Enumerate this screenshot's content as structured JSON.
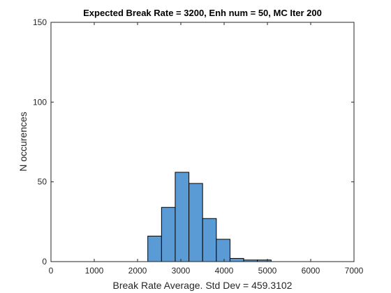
{
  "chart_data": {
    "type": "bar",
    "title": "Expected Break Rate = 3200, Enh num = 50, MC Iter 200",
    "xlabel": "Break Rate Average. Std Dev = 459.3102",
    "ylabel": "N occurences",
    "xlim": [
      0,
      7000
    ],
    "ylim": [
      0,
      150
    ],
    "xticks": [
      "0",
      "1000",
      "2000",
      "3000",
      "4000",
      "5000",
      "6000",
      "7000"
    ],
    "yticks": [
      "0",
      "50",
      "100",
      "150"
    ],
    "grid": false,
    "bar_color": "#5B9BD5",
    "edge_color": "#000000",
    "bins": [
      {
        "x0": 2237,
        "x1": 2554,
        "value": 16
      },
      {
        "x0": 2554,
        "x1": 2870,
        "value": 34
      },
      {
        "x0": 2870,
        "x1": 3187,
        "value": 56
      },
      {
        "x0": 3187,
        "x1": 3503,
        "value": 49
      },
      {
        "x0": 3503,
        "x1": 3820,
        "value": 27
      },
      {
        "x0": 3820,
        "x1": 4136,
        "value": 14
      },
      {
        "x0": 4136,
        "x1": 4453,
        "value": 2
      },
      {
        "x0": 4453,
        "x1": 4769,
        "value": 1
      },
      {
        "x0": 4769,
        "x1": 5086,
        "value": 1
      }
    ]
  }
}
